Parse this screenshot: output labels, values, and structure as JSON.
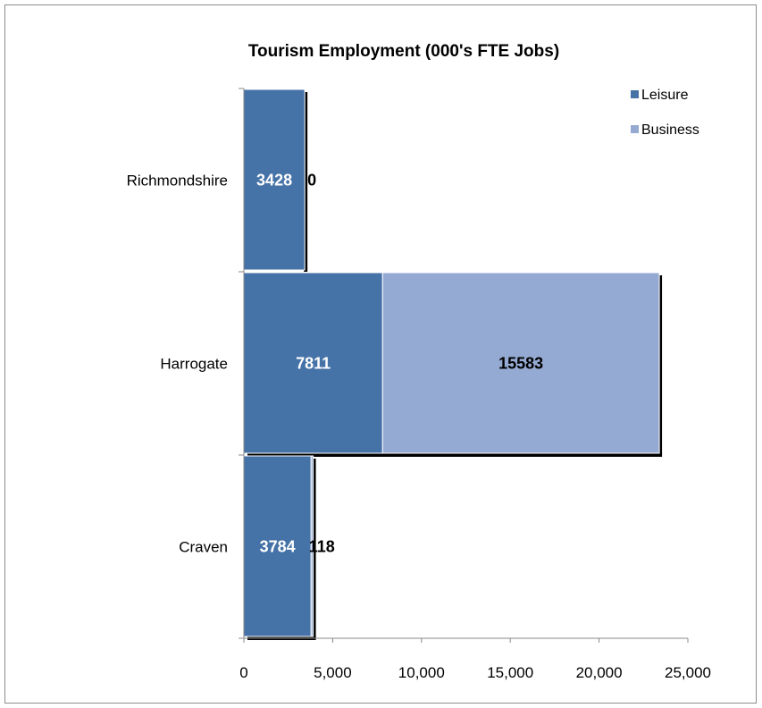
{
  "chart_data": {
    "type": "bar",
    "orientation": "horizontal",
    "stacked": true,
    "title": "Tourism Employment (000's FTE Jobs)",
    "categories": [
      "Richmondshire",
      "Harrogate",
      "Craven"
    ],
    "series": [
      {
        "name": "Leisure",
        "values": [
          3428,
          7811,
          3784
        ],
        "color": "#4572a7",
        "label_color": "#ffffff"
      },
      {
        "name": "Business",
        "values": [
          0,
          15583,
          118
        ],
        "color": "#95aad2",
        "label_color": "#000000"
      }
    ],
    "xlim": [
      0,
      25000
    ],
    "xticks": [
      0,
      5000,
      10000,
      15000,
      20000,
      25000
    ],
    "xtick_labels": [
      "0",
      "5,000",
      "10,000",
      "15,000",
      "20,000",
      "25,000"
    ],
    "xlabel": "",
    "ylabel": "",
    "grid": false,
    "legend": "top-right"
  }
}
